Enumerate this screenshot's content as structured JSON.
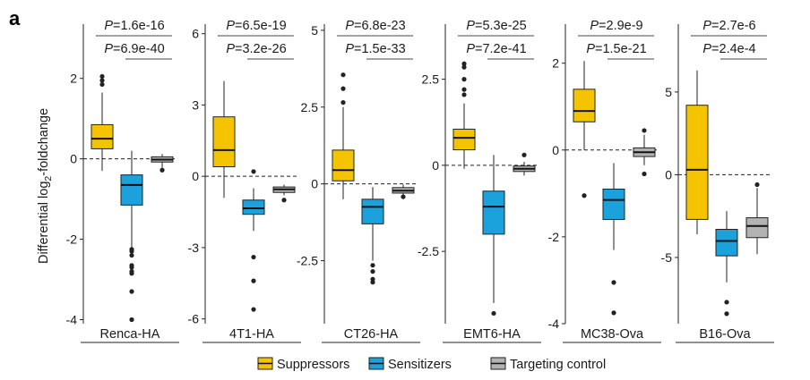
{
  "panel_label": "a",
  "y_axis_label": {
    "text": "Differential log",
    "sub": "2",
    "suffix": "-foldchange"
  },
  "legend": [
    {
      "label": "Suppressors",
      "color": "#F5C400"
    },
    {
      "label": "Sensitizers",
      "color": "#1BA1DC"
    },
    {
      "label": "Targeting control",
      "color": "#B3B3B3"
    }
  ],
  "chart_data": {
    "type": "boxplot",
    "groups": [
      "Suppressors",
      "Sensitizers",
      "Targeting control"
    ],
    "colors": {
      "Suppressors": "#F5C400",
      "Sensitizers": "#1BA1DC",
      "Targeting control": "#B3B3B3"
    },
    "reference_line": 0,
    "panels": [
      {
        "name": "Renca-HA",
        "ylim": [
          -4.1,
          3.35
        ],
        "yticks": [
          2,
          0,
          -2,
          -4
        ],
        "ytick_labels": [
          "2",
          "0",
          "-2",
          "-4"
        ],
        "pvalues": [
          "1.6e-16",
          "6.9e-40"
        ],
        "boxes": [
          {
            "group": "Suppressors",
            "min": -0.3,
            "q1": 0.25,
            "median": 0.5,
            "q3": 0.85,
            "max": 1.65,
            "outliers": [
              1.85,
              1.95,
              2.05
            ]
          },
          {
            "group": "Sensitizers",
            "min": -2.2,
            "q1": -1.15,
            "median": -0.65,
            "q3": -0.4,
            "max": 0.2,
            "outliers": [
              -2.25,
              -2.3,
              -2.4,
              -2.65,
              -2.7,
              -2.8,
              -2.85,
              -3.3,
              -4.0
            ]
          },
          {
            "group": "Targeting control",
            "min": -0.22,
            "q1": -0.08,
            "median": -0.02,
            "q3": 0.05,
            "max": 0.12,
            "outliers": [
              -0.28
            ]
          }
        ]
      },
      {
        "name": "4T1-HA",
        "ylim": [
          -6.2,
          6.4
        ],
        "yticks": [
          6,
          3,
          0,
          -3,
          -6
        ],
        "ytick_labels": [
          "6",
          "3",
          "0",
          "-3",
          "-6"
        ],
        "pvalues": [
          "6.5e-19",
          "3.2e-26"
        ],
        "boxes": [
          {
            "group": "Suppressors",
            "min": -0.9,
            "q1": 0.4,
            "median": 1.1,
            "q3": 2.5,
            "max": 4.0,
            "outliers": []
          },
          {
            "group": "Sensitizers",
            "min": -2.3,
            "q1": -1.6,
            "median": -1.35,
            "q3": -1.0,
            "max": -0.5,
            "outliers": [
              0.2,
              -3.4,
              -4.4,
              -5.6
            ]
          },
          {
            "group": "Targeting control",
            "min": -0.8,
            "q1": -0.68,
            "median": -0.55,
            "q3": -0.45,
            "max": -0.35,
            "outliers": [
              -1.0
            ]
          }
        ]
      },
      {
        "name": "CT26-HA",
        "ylim": [
          -4.55,
          5.2
        ],
        "yticks": [
          5,
          2.5,
          0,
          -2.5
        ],
        "ytick_labels": [
          "5",
          "2.5",
          "0",
          "-2.5"
        ],
        "pvalues": [
          "6.8e-23",
          "1.5e-33"
        ],
        "boxes": [
          {
            "group": "Suppressors",
            "min": -0.5,
            "q1": 0.1,
            "median": 0.45,
            "q3": 1.1,
            "max": 2.5,
            "outliers": [
              2.65,
              3.1,
              3.55
            ]
          },
          {
            "group": "Sensitizers",
            "min": -2.5,
            "q1": -1.3,
            "median": -0.75,
            "q3": -0.5,
            "max": -0.1,
            "outliers": [
              -2.65,
              -2.85,
              -3.1,
              -3.2
            ]
          },
          {
            "group": "Targeting control",
            "min": -0.35,
            "q1": -0.3,
            "median": -0.22,
            "q3": -0.12,
            "max": -0.02,
            "outliers": [
              -0.42
            ]
          }
        ]
      },
      {
        "name": "EMT6-HA",
        "ylim": [
          -4.6,
          4.1
        ],
        "yticks": [
          2.5,
          0,
          -2.5
        ],
        "ytick_labels": [
          "2.5",
          "0",
          "-2.5"
        ],
        "pvalues": [
          "5.3e-25",
          "7.2e-41"
        ],
        "boxes": [
          {
            "group": "Suppressors",
            "min": -0.1,
            "q1": 0.45,
            "median": 0.8,
            "q3": 1.05,
            "max": 1.8,
            "outliers": [
              2.05,
              2.2,
              2.5,
              2.85,
              2.95
            ]
          },
          {
            "group": "Sensitizers",
            "min": -4.0,
            "q1": -2.0,
            "median": -1.2,
            "q3": -0.75,
            "max": 0.3,
            "outliers": [
              -4.3
            ]
          },
          {
            "group": "Targeting control",
            "min": -0.3,
            "q1": -0.18,
            "median": -0.1,
            "q3": -0.02,
            "max": 0.1,
            "outliers": [
              0.3
            ]
          }
        ]
      },
      {
        "name": "MC38-Ova",
        "ylim": [
          -4.0,
          2.9
        ],
        "yticks": [
          2,
          0,
          -2,
          -4
        ],
        "ytick_labels": [
          "2",
          "0",
          "-2",
          "-4"
        ],
        "pvalues": [
          "2.9e-9",
          "1.5e-21"
        ],
        "boxes": [
          {
            "group": "Suppressors",
            "min": 0.0,
            "q1": 0.65,
            "median": 0.9,
            "q3": 1.4,
            "max": 2.05,
            "outliers": [
              -1.05
            ]
          },
          {
            "group": "Sensitizers",
            "min": -2.3,
            "q1": -1.6,
            "median": -1.15,
            "q3": -0.9,
            "max": -0.3,
            "outliers": [
              -3.05,
              -3.75
            ]
          },
          {
            "group": "Targeting control",
            "min": -0.35,
            "q1": -0.15,
            "median": -0.05,
            "q3": 0.05,
            "max": 0.35,
            "outliers": [
              0.45,
              -0.55
            ]
          }
        ]
      },
      {
        "name": "B16-Ova",
        "ylim": [
          -9.0,
          9.1
        ],
        "yticks": [
          5,
          0,
          -5
        ],
        "ytick_labels": [
          "5",
          "0",
          "-5"
        ],
        "pvalues": [
          "2.7e-6",
          "2.4e-4"
        ],
        "boxes": [
          {
            "group": "Suppressors",
            "min": -3.6,
            "q1": -2.7,
            "median": 0.3,
            "q3": 4.2,
            "max": 6.3,
            "outliers": []
          },
          {
            "group": "Sensitizers",
            "min": -6.5,
            "q1": -4.9,
            "median": -4.0,
            "q3": -3.3,
            "max": -2.2,
            "outliers": [
              -7.7,
              -8.4
            ]
          },
          {
            "group": "Targeting control",
            "min": -4.8,
            "q1": -3.8,
            "median": -3.1,
            "q3": -2.6,
            "max": -0.8,
            "outliers": [
              -0.6
            ]
          }
        ]
      }
    ]
  }
}
